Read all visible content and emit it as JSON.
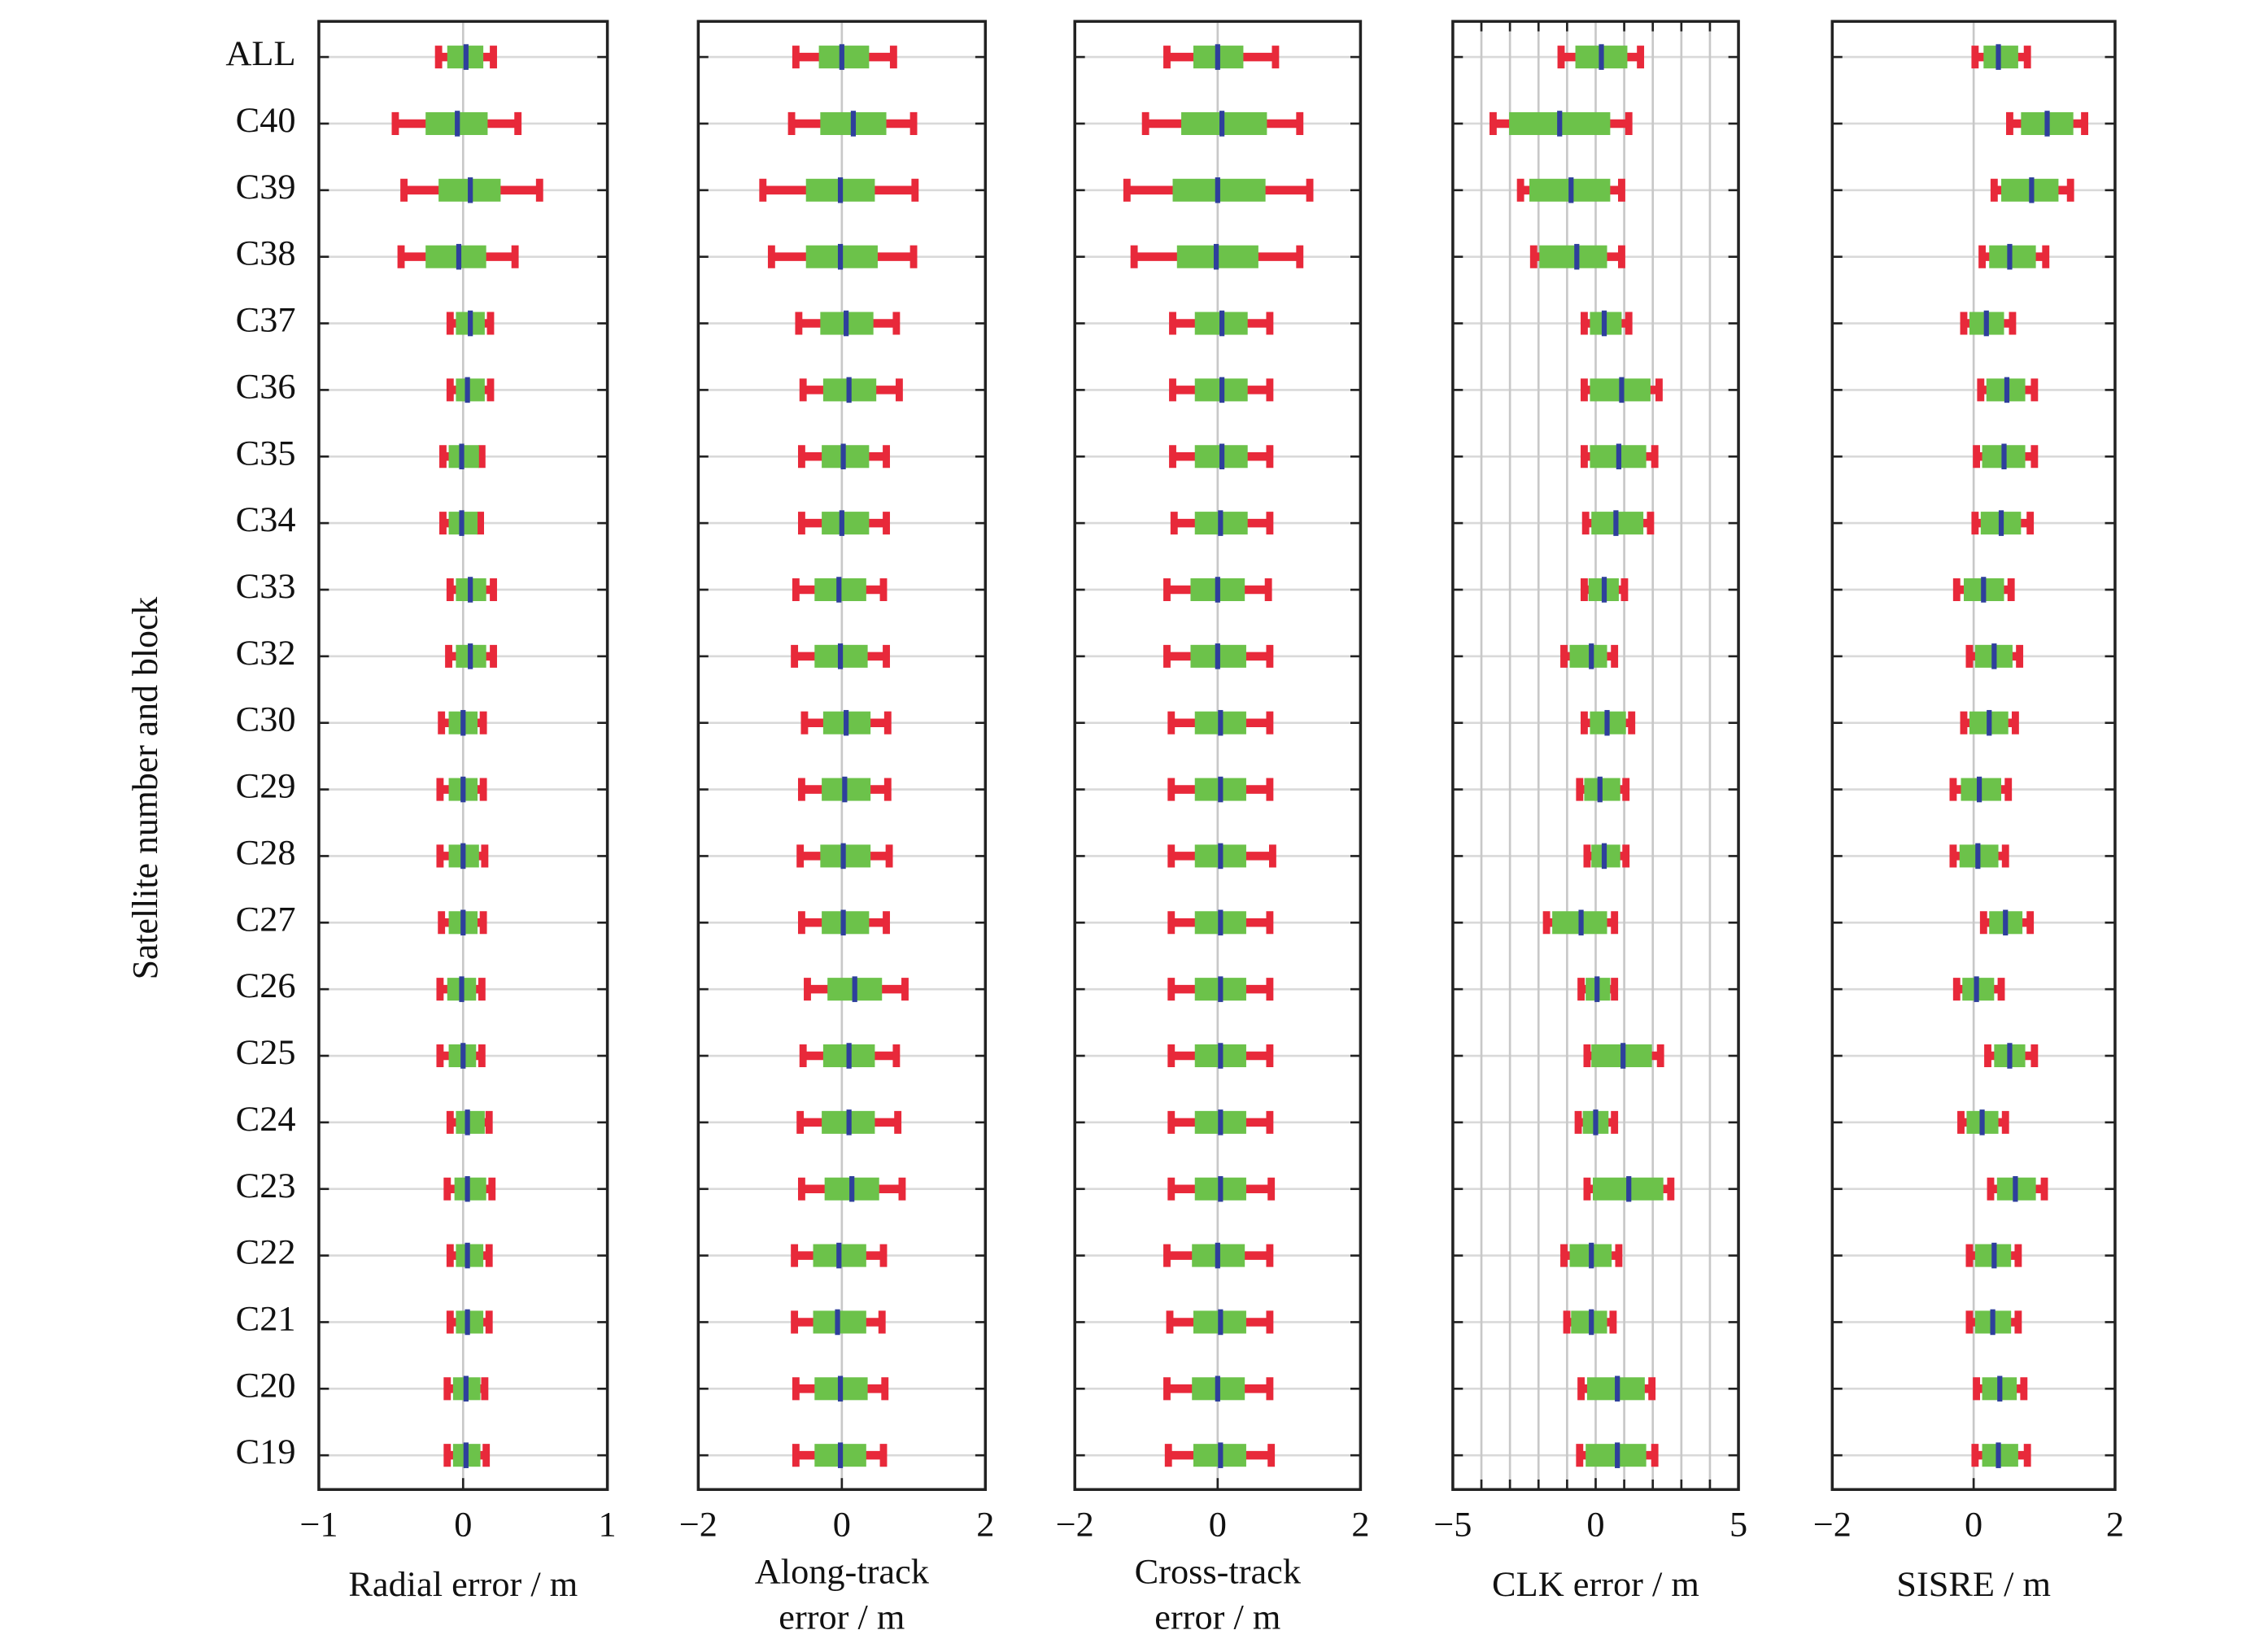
{
  "chart_data": [
    {
      "type": "box",
      "ylabel": "Satellite number and block",
      "categories": [
        "ALL",
        "C40",
        "C39",
        "C38",
        "C37",
        "C36",
        "C35",
        "C34",
        "C33",
        "C32",
        "C30",
        "C29",
        "C28",
        "C27",
        "C26",
        "C25",
        "C24",
        "C23",
        "C22",
        "C21",
        "C20",
        "C19"
      ],
      "xlabel": [
        "Radial error / m"
      ],
      "xlim": [
        -1,
        1
      ],
      "xticks": [
        {
          "value": -1,
          "label": "−1"
        },
        0,
        1
      ],
      "grid": true,
      "whisker_color": "#e8293a",
      "box_color": "#6cc24a",
      "median_color": "#2e3f9c",
      "boxes": {
        "low": [
          -0.17,
          -0.47,
          -0.41,
          -0.43,
          -0.09,
          -0.09,
          -0.14,
          -0.14,
          -0.09,
          -0.1,
          -0.15,
          -0.16,
          -0.16,
          -0.15,
          -0.16,
          -0.16,
          -0.09,
          -0.11,
          -0.09,
          -0.09,
          -0.11,
          -0.11
        ],
        "q1": [
          -0.11,
          -0.26,
          -0.17,
          -0.26,
          -0.05,
          -0.05,
          -0.1,
          -0.1,
          -0.05,
          -0.05,
          -0.1,
          -0.1,
          -0.1,
          -0.1,
          -0.11,
          -0.1,
          -0.05,
          -0.06,
          -0.05,
          -0.05,
          -0.07,
          -0.07
        ],
        "median": [
          0.02,
          -0.04,
          0.05,
          -0.03,
          0.05,
          0.03,
          -0.01,
          -0.01,
          0.05,
          0.05,
          0,
          0,
          0,
          0,
          -0.01,
          0,
          0.03,
          0.03,
          0.03,
          0.03,
          0.02,
          0.02
        ],
        "q3": [
          0.14,
          0.17,
          0.26,
          0.16,
          0.15,
          0.15,
          0.11,
          0.1,
          0.16,
          0.16,
          0.1,
          0.1,
          0.11,
          0.1,
          0.09,
          0.09,
          0.15,
          0.16,
          0.14,
          0.14,
          0.12,
          0.12
        ],
        "high": [
          0.21,
          0.38,
          0.53,
          0.36,
          0.19,
          0.19,
          0.13,
          0.12,
          0.21,
          0.21,
          0.14,
          0.14,
          0.15,
          0.14,
          0.13,
          0.13,
          0.18,
          0.2,
          0.18,
          0.18,
          0.15,
          0.16
        ]
      }
    },
    {
      "type": "box",
      "xlabel": [
        "Along-track",
        "error / m"
      ],
      "xlim": [
        -2,
        2
      ],
      "xticks": [
        {
          "value": -2,
          "label": "−2"
        },
        0,
        2
      ],
      "grid": true,
      "whisker_color": "#e8293a",
      "box_color": "#6cc24a",
      "median_color": "#2e3f9c",
      "boxes": {
        "low": [
          -0.64,
          -0.7,
          -1.1,
          -0.98,
          -0.6,
          -0.54,
          -0.56,
          -0.56,
          -0.64,
          -0.66,
          -0.52,
          -0.56,
          -0.58,
          -0.56,
          -0.48,
          -0.54,
          -0.58,
          -0.56,
          -0.66,
          -0.66,
          -0.64,
          -0.64
        ],
        "q1": [
          -0.32,
          -0.3,
          -0.5,
          -0.5,
          -0.3,
          -0.26,
          -0.28,
          -0.28,
          -0.38,
          -0.38,
          -0.26,
          -0.28,
          -0.3,
          -0.28,
          -0.2,
          -0.26,
          -0.28,
          -0.24,
          -0.4,
          -0.4,
          -0.38,
          -0.38
        ],
        "median": [
          0,
          0.16,
          -0.02,
          -0.02,
          0.06,
          0.1,
          0.02,
          0,
          -0.04,
          -0.02,
          0.06,
          0.04,
          0.02,
          0.02,
          0.18,
          0.1,
          0.1,
          0.14,
          -0.04,
          -0.06,
          -0.02,
          -0.02
        ],
        "q3": [
          0.38,
          0.62,
          0.46,
          0.5,
          0.44,
          0.48,
          0.38,
          0.38,
          0.34,
          0.36,
          0.4,
          0.4,
          0.4,
          0.38,
          0.56,
          0.46,
          0.46,
          0.52,
          0.34,
          0.34,
          0.36,
          0.34
        ],
        "high": [
          0.72,
          1.0,
          1.02,
          1.0,
          0.76,
          0.8,
          0.62,
          0.62,
          0.58,
          0.62,
          0.64,
          0.64,
          0.66,
          0.62,
          0.88,
          0.76,
          0.78,
          0.84,
          0.58,
          0.56,
          0.6,
          0.58
        ]
      }
    },
    {
      "type": "box",
      "xlabel": [
        "Cross-track",
        "error / m"
      ],
      "xlim": [
        -2,
        2
      ],
      "xticks": [
        {
          "value": -2,
          "label": "−2"
        },
        0,
        2
      ],
      "grid": true,
      "whisker_color": "#e8293a",
      "box_color": "#6cc24a",
      "median_color": "#2e3f9c",
      "boxes": {
        "low": [
          -0.71,
          -1.01,
          -1.27,
          -1.17,
          -0.63,
          -0.63,
          -0.63,
          -0.61,
          -0.71,
          -0.71,
          -0.65,
          -0.65,
          -0.65,
          -0.65,
          -0.65,
          -0.65,
          -0.65,
          -0.65,
          -0.71,
          -0.67,
          -0.71,
          -0.69
        ],
        "q1": [
          -0.34,
          -0.51,
          -0.63,
          -0.57,
          -0.32,
          -0.32,
          -0.32,
          -0.32,
          -0.38,
          -0.38,
          -0.32,
          -0.32,
          -0.32,
          -0.32,
          -0.32,
          -0.32,
          -0.32,
          -0.32,
          -0.36,
          -0.34,
          -0.36,
          -0.34
        ],
        "median": [
          0,
          0.06,
          0,
          -0.02,
          0.06,
          0.06,
          0.06,
          0.04,
          0,
          0,
          0.04,
          0.04,
          0.04,
          0.04,
          0.04,
          0.04,
          0.04,
          0.04,
          0,
          0.04,
          0,
          0.04
        ],
        "q3": [
          0.36,
          0.69,
          0.67,
          0.57,
          0.42,
          0.42,
          0.42,
          0.42,
          0.38,
          0.4,
          0.4,
          0.4,
          0.4,
          0.4,
          0.4,
          0.4,
          0.4,
          0.4,
          0.38,
          0.4,
          0.38,
          0.4
        ],
        "high": [
          0.81,
          1.15,
          1.29,
          1.15,
          0.73,
          0.73,
          0.73,
          0.73,
          0.71,
          0.73,
          0.73,
          0.73,
          0.77,
          0.73,
          0.73,
          0.73,
          0.73,
          0.75,
          0.73,
          0.73,
          0.73,
          0.75
        ]
      }
    },
    {
      "type": "box",
      "xlabel": [
        "CLK error / m"
      ],
      "xlim": [
        -5,
        5
      ],
      "xticks": [
        {
          "value": -5,
          "label": "−5"
        },
        0,
        5
      ],
      "grid": true,
      "xminorticks": [
        -4,
        -3,
        -2,
        -1,
        1,
        2,
        3,
        4
      ],
      "minor_grid": true,
      "whisker_color": "#e8293a",
      "box_color": "#6cc24a",
      "median_color": "#2e3f9c",
      "boxes": {
        "low": [
          -1.21,
          -3.59,
          -2.63,
          -2.17,
          -0.4,
          -0.4,
          -0.4,
          -0.35,
          -0.4,
          -1.11,
          -0.4,
          -0.56,
          -0.3,
          -1.72,
          -0.51,
          -0.3,
          -0.61,
          -0.3,
          -1.11,
          -1.01,
          -0.51,
          -0.56
        ],
        "q1": [
          -0.71,
          -3.03,
          -2.32,
          -1.97,
          -0.2,
          -0.2,
          -0.2,
          -0.15,
          -0.25,
          -0.91,
          -0.2,
          -0.4,
          -0.15,
          -1.52,
          -0.35,
          -0.15,
          -0.45,
          -0.1,
          -0.91,
          -0.86,
          -0.3,
          -0.35
        ],
        "median": [
          0.2,
          -1.26,
          -0.86,
          -0.66,
          0.3,
          0.91,
          0.81,
          0.71,
          0.3,
          -0.15,
          0.4,
          0.15,
          0.3,
          -0.51,
          0.05,
          0.96,
          0,
          1.16,
          -0.15,
          -0.15,
          0.76,
          0.76
        ],
        "q3": [
          1.11,
          0.51,
          0.51,
          0.4,
          0.91,
          1.92,
          1.77,
          1.67,
          0.81,
          0.4,
          1.06,
          0.86,
          0.86,
          0.4,
          0.51,
          1.97,
          0.45,
          2.37,
          0.56,
          0.4,
          1.72,
          1.77
        ],
        "high": [
          1.57,
          1.16,
          0.91,
          0.91,
          1.16,
          2.22,
          2.07,
          1.92,
          1.01,
          0.66,
          1.26,
          1.06,
          1.06,
          0.66,
          0.66,
          2.27,
          0.66,
          2.63,
          0.81,
          0.61,
          1.97,
          2.07
        ]
      }
    },
    {
      "type": "box",
      "xlabel": [
        "SISRE / m"
      ],
      "xlim": [
        -2,
        2
      ],
      "xticks": [
        {
          "value": -2,
          "label": "−2"
        },
        0,
        2
      ],
      "grid": true,
      "whisker_color": "#e8293a",
      "box_color": "#6cc24a",
      "median_color": "#2e3f9c",
      "boxes": {
        "low": [
          0.02,
          0.51,
          0.29,
          0.12,
          -0.14,
          0.1,
          0.04,
          0.02,
          -0.24,
          -0.06,
          -0.14,
          -0.29,
          -0.29,
          0.14,
          -0.24,
          0.2,
          -0.18,
          0.24,
          -0.06,
          -0.06,
          0.04,
          0.02
        ],
        "q1": [
          0.14,
          0.67,
          0.39,
          0.22,
          -0.06,
          0.18,
          0.12,
          0.1,
          -0.14,
          0.02,
          -0.06,
          -0.18,
          -0.2,
          0.22,
          -0.16,
          0.29,
          -0.1,
          0.33,
          0.02,
          0.02,
          0.12,
          0.12
        ],
        "median": [
          0.35,
          1.04,
          0.82,
          0.51,
          0.18,
          0.47,
          0.43,
          0.39,
          0.14,
          0.29,
          0.22,
          0.08,
          0.06,
          0.45,
          0.04,
          0.51,
          0.12,
          0.59,
          0.29,
          0.27,
          0.37,
          0.35
        ],
        "q3": [
          0.63,
          1.41,
          1.2,
          0.88,
          0.43,
          0.73,
          0.73,
          0.67,
          0.43,
          0.55,
          0.49,
          0.39,
          0.35,
          0.69,
          0.29,
          0.73,
          0.35,
          0.88,
          0.53,
          0.53,
          0.61,
          0.63
        ],
        "high": [
          0.76,
          1.57,
          1.37,
          1.02,
          0.55,
          0.86,
          0.86,
          0.8,
          0.53,
          0.65,
          0.59,
          0.49,
          0.45,
          0.8,
          0.39,
          0.86,
          0.45,
          1.0,
          0.63,
          0.63,
          0.71,
          0.76
        ]
      }
    }
  ]
}
